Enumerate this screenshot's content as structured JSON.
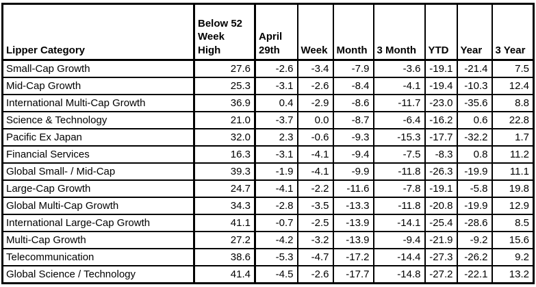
{
  "chart_data": {
    "type": "table",
    "title": "",
    "columns": [
      "Lipper Category",
      "Below 52 Week High",
      "April 29th",
      "Week",
      "Month",
      "3 Month",
      "YTD",
      "Year",
      "3 Year"
    ],
    "rows": [
      [
        "Small-Cap Growth",
        "27.6",
        "-2.6",
        "-3.4",
        "-7.9",
        "-3.6",
        "-19.1",
        "-21.4",
        "7.5"
      ],
      [
        "Mid-Cap Growth",
        "25.3",
        "-3.1",
        "-2.6",
        "-8.4",
        "-4.1",
        "-19.4",
        "-10.3",
        "12.4"
      ],
      [
        "International Multi-Cap Growth",
        "36.9",
        "0.4",
        "-2.9",
        "-8.6",
        "-11.7",
        "-23.0",
        "-35.6",
        "8.8"
      ],
      [
        "Science & Technology",
        "21.0",
        "-3.7",
        "0.0",
        "-8.7",
        "-6.4",
        "-16.2",
        "0.6",
        "22.8"
      ],
      [
        "Pacific Ex Japan",
        "32.0",
        "2.3",
        "-0.6",
        "-9.3",
        "-15.3",
        "-17.7",
        "-32.2",
        "1.7"
      ],
      [
        "Financial Services",
        "16.3",
        "-3.1",
        "-4.1",
        "-9.4",
        "-7.5",
        "-8.3",
        "0.8",
        "11.2"
      ],
      [
        "Global Small- / Mid-Cap",
        "39.3",
        "-1.9",
        "-4.1",
        "-9.9",
        "-11.8",
        "-26.3",
        "-19.9",
        "11.1"
      ],
      [
        "Large-Cap Growth",
        "24.7",
        "-4.1",
        "-2.2",
        "-11.6",
        "-7.8",
        "-19.1",
        "-5.8",
        "19.8"
      ],
      [
        "Global Multi-Cap Growth",
        "34.3",
        "-2.8",
        "-3.5",
        "-13.3",
        "-11.8",
        "-20.8",
        "-19.9",
        "12.9"
      ],
      [
        "International Large-Cap Growth",
        "41.1",
        "-0.7",
        "-2.5",
        "-13.9",
        "-14.1",
        "-25.4",
        "-28.6",
        "8.5"
      ],
      [
        "Multi-Cap Growth",
        "27.2",
        "-4.2",
        "-3.2",
        "-13.9",
        "-9.4",
        "-21.9",
        "-9.2",
        "15.6"
      ],
      [
        "Telecommunication",
        "38.6",
        "-5.3",
        "-4.7",
        "-17.2",
        "-14.4",
        "-27.3",
        "-26.2",
        "9.2"
      ],
      [
        "Global Science / Technology",
        "41.4",
        "-4.5",
        "-2.6",
        "-17.7",
        "-14.8",
        "-27.2",
        "-22.1",
        "13.2"
      ]
    ]
  },
  "header": {
    "labels": [
      "Lipper Category",
      "Below 52\nWeek\nHigh",
      "April\n29th",
      "Week",
      "Month",
      "3 Month",
      "YTD",
      "Year",
      "3 Year"
    ]
  },
  "colors": {
    "border": "#000000",
    "text": "#000000",
    "background": "#ffffff"
  }
}
